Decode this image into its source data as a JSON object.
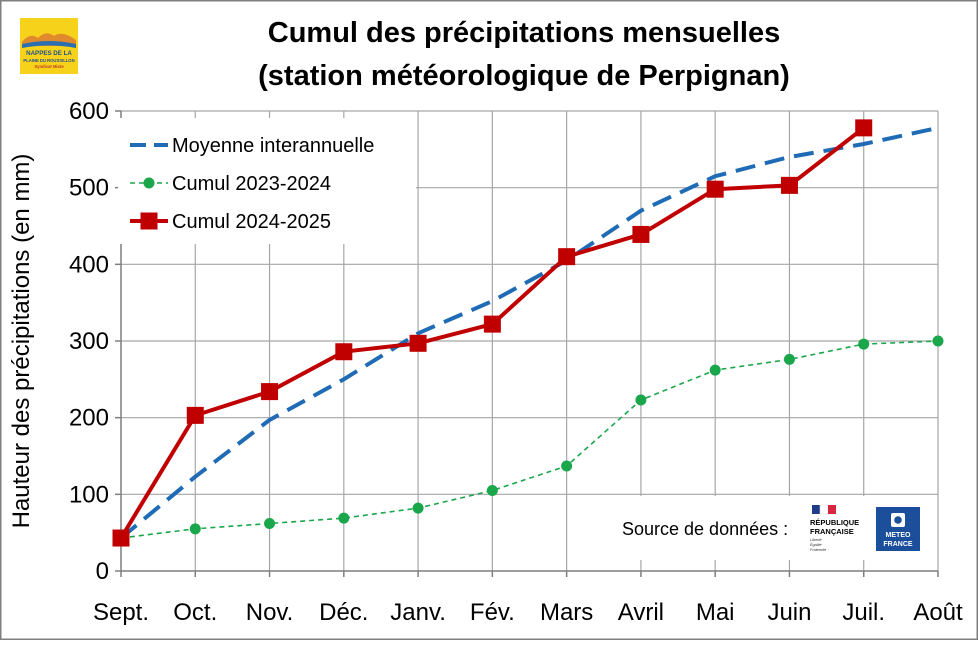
{
  "logo": {
    "line1": "NAPPES DE LA",
    "line2": "PLAINE DU ROUSSILLON",
    "line3": "Syndicat Mixte"
  },
  "source": {
    "label": "Source de données :",
    "republique_line1": "RÉPUBLIQUE",
    "republique_line2": "FRANÇAISE",
    "republique_motto": [
      "Liberté",
      "Égalité",
      "Fraternité"
    ],
    "meteo_line1": "METEO",
    "meteo_line2": "FRANCE"
  },
  "chart_data": {
    "type": "line",
    "title": [
      "Cumul des précipitations mensuelles",
      "(station météorologique de Perpignan)"
    ],
    "xlabel": "",
    "ylabel": "Hauteur des précipitations (en mm)",
    "categories": [
      "Sept.",
      "Oct.",
      "Nov.",
      "Déc.",
      "Janv.",
      "Fév.",
      "Mars",
      "Avril",
      "Mai",
      "Juin",
      "Juil.",
      "Août"
    ],
    "ylim": [
      0,
      600
    ],
    "yticks": [
      0,
      100,
      200,
      300,
      400,
      500,
      600
    ],
    "grid": true,
    "legend": "top-left",
    "series": [
      {
        "name": "Moyenne interannuelle",
        "style": "dashed",
        "marker": "none",
        "color": "#1f6bb5",
        "values": [
          43,
          123,
          197,
          250,
          310,
          352,
          405,
          470,
          515,
          540,
          557,
          578
        ]
      },
      {
        "name": "Cumul 2023-2024",
        "style": "dotted",
        "marker": "circle",
        "color": "#1aa64b",
        "values": [
          43,
          55,
          62,
          69,
          82,
          105,
          137,
          223,
          262,
          276,
          296,
          300
        ]
      },
      {
        "name": "Cumul 2024-2025",
        "style": "solid",
        "marker": "square",
        "color": "#c00000",
        "values": [
          43,
          203,
          234,
          286,
          297,
          322,
          410,
          439,
          498,
          503,
          578,
          null
        ]
      }
    ]
  }
}
